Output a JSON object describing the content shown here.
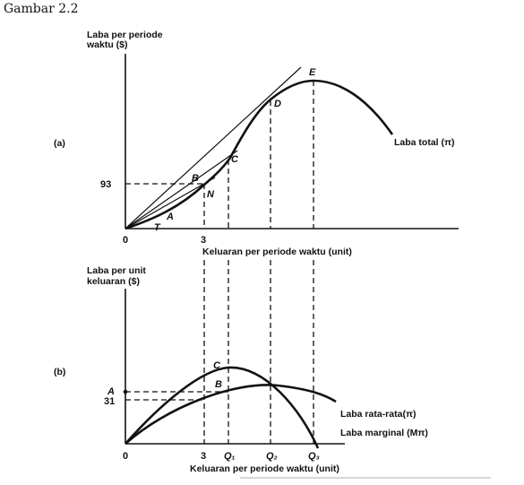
{
  "caption": "Gambar 2.2",
  "panel_a": {
    "marker": "(a)",
    "y_label_line1": "Laba per periode",
    "y_label_line2": "waktu ($)",
    "x_label": "Keluaran per periode waktu (unit)",
    "tick_y": "93",
    "tick_x_origin": "0",
    "tick_x_3": "3",
    "points": {
      "T": "T",
      "A": "A",
      "N": "N",
      "B": "B",
      "C": "C",
      "D": "D",
      "E": "E"
    },
    "curve_label": "Laba total (π)"
  },
  "panel_b": {
    "marker": "(b)",
    "y_label_line1": "Laba per unit",
    "y_label_line2": "keluaran ($)",
    "x_label": "Keluaran per periode waktu (unit)",
    "tick_y_A": "A",
    "tick_y_31": "31",
    "tick_x_origin": "0",
    "tick_x_3": "3",
    "tick_q1": "Q₁",
    "tick_q2": "Q₂",
    "tick_q3": "Q₃",
    "points": {
      "C": "C",
      "B": "B"
    },
    "avg_label": "Laba rata-rata(π)",
    "marg_label": "Laba marginal (Mπ)"
  }
}
